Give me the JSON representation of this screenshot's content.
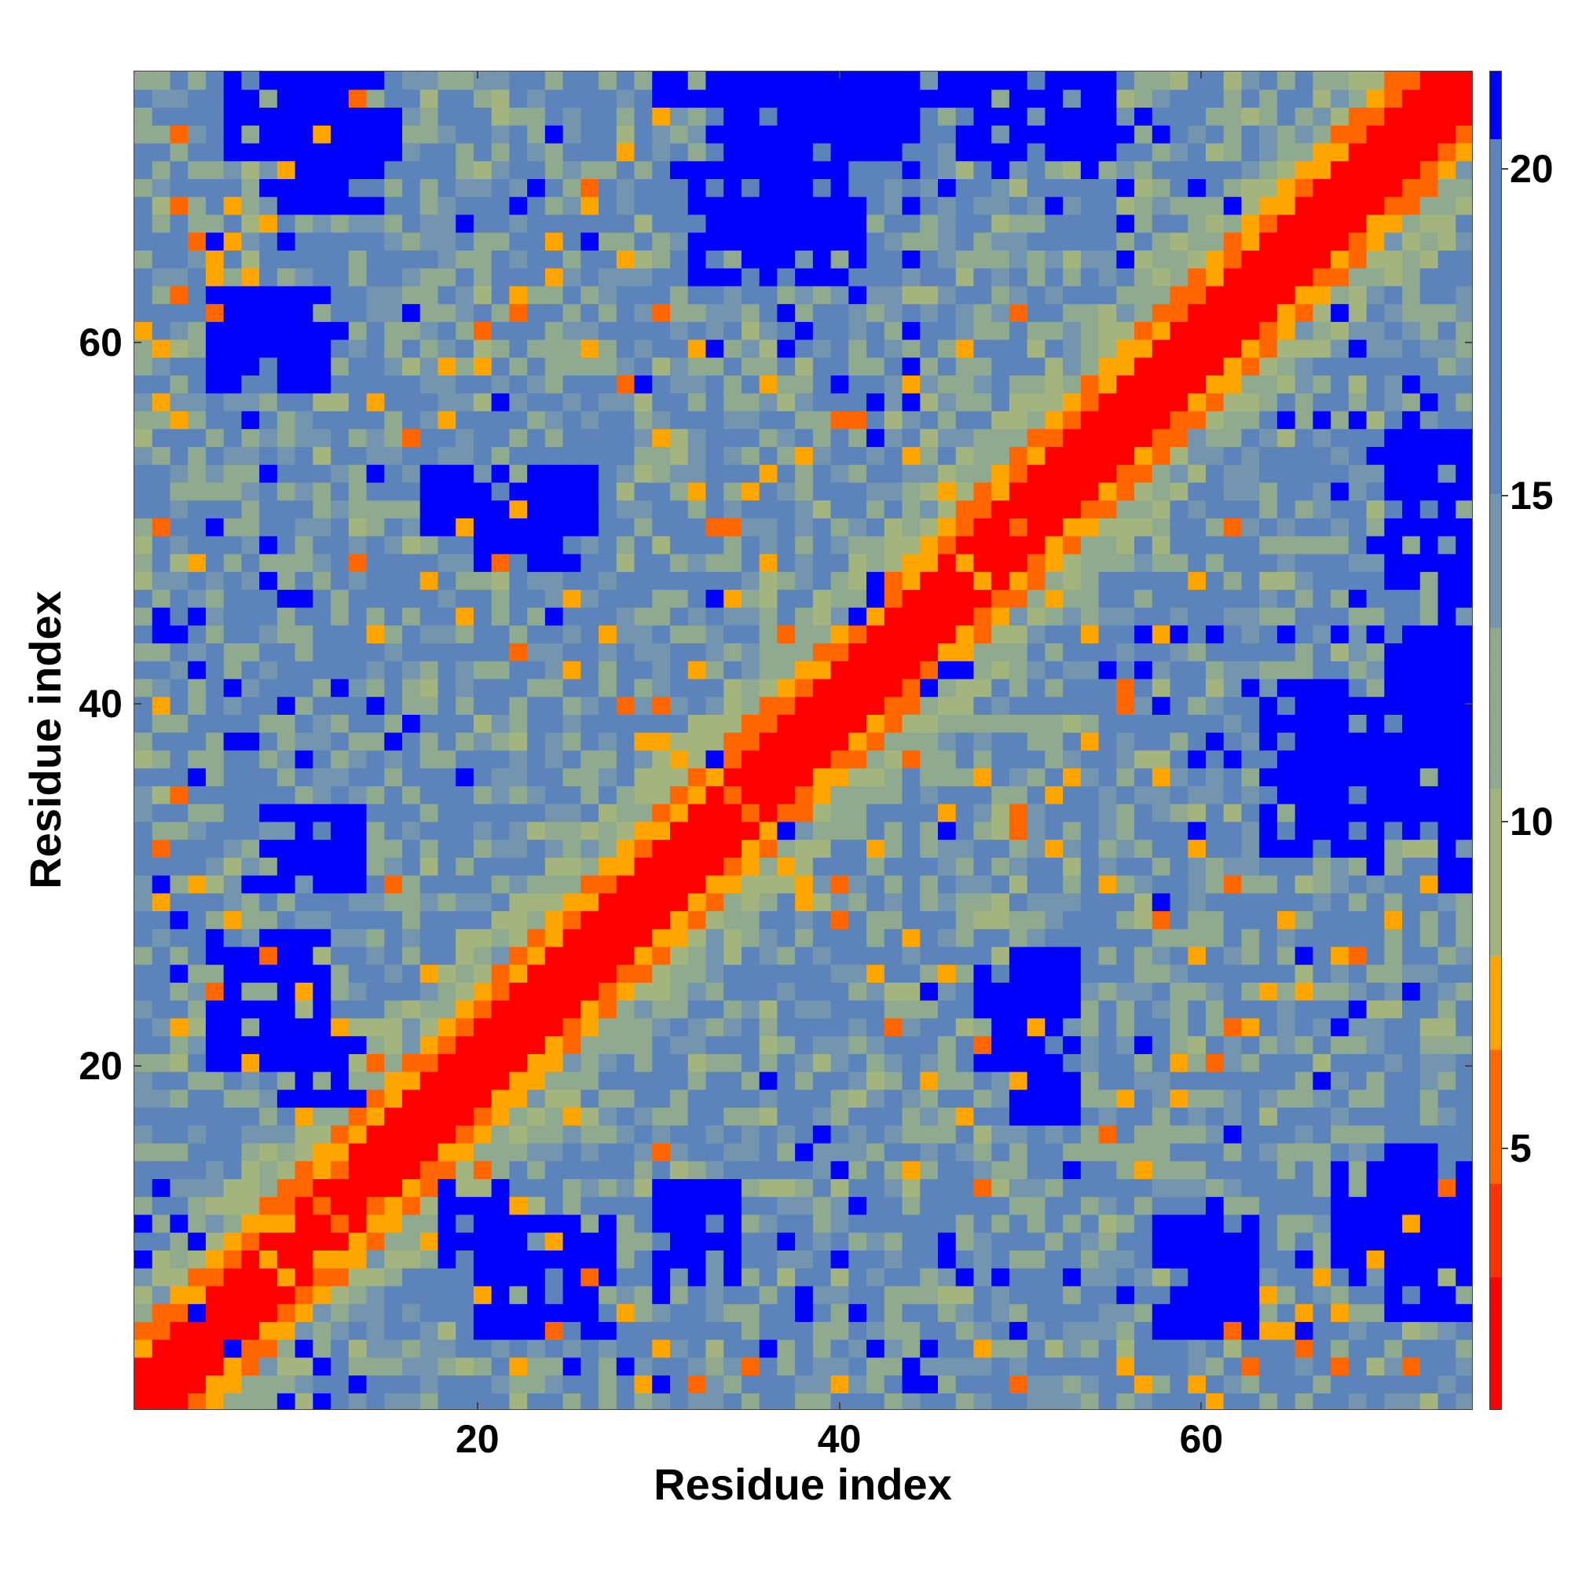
{
  "chart_data": {
    "type": "heatmap",
    "title": "",
    "xlabel": "Residue index",
    "ylabel": "Residue index",
    "n_residues": 75,
    "xlim": [
      1,
      75
    ],
    "ylim": [
      1,
      75
    ],
    "x_ticks": [
      20,
      40,
      60
    ],
    "x_tick_labels": [
      "20",
      "40",
      "60"
    ],
    "y_ticks": [
      20,
      40,
      60
    ],
    "y_tick_labels": [
      "20",
      "40",
      "60"
    ],
    "colorbar": {
      "range": [
        1,
        21.5
      ],
      "ticks": [
        5,
        10,
        15,
        20
      ],
      "tick_labels": [
        "5",
        "10",
        "15",
        "20"
      ],
      "palette": [
        {
          "upto": 3.0,
          "color": "#ff0000"
        },
        {
          "upto": 4.5,
          "color": "#ff3300"
        },
        {
          "upto": 6.5,
          "color": "#ff6600"
        },
        {
          "upto": 8.0,
          "color": "#ffa500"
        },
        {
          "upto": 10.5,
          "color": "#a3b47e"
        },
        {
          "upto": 13.0,
          "color": "#8faa8e"
        },
        {
          "upto": 15.0,
          "color": "#7395b0"
        },
        {
          "upto": 20.5,
          "color": "#5c84bb"
        },
        {
          "upto": 99,
          "color": "#0000ff"
        }
      ]
    },
    "blue_regions": [
      [
        [
          9,
          13
        ],
        [
          18,
          21
        ]
      ],
      [
        [
          8,
          13
        ],
        [
          30,
          34
        ]
      ],
      [
        [
          20,
          27
        ],
        [
          5,
          11
        ]
      ],
      [
        [
          60,
          63
        ],
        [
          5,
          11
        ]
      ],
      [
        [
          71,
          75
        ],
        [
          6,
          15
        ]
      ],
      [
        [
          66,
          70
        ],
        [
          32,
          40
        ]
      ],
      [
        [
          74,
          75
        ],
        [
          30,
          48
        ]
      ],
      [
        [
          5,
          11
        ],
        [
          58,
          62
        ]
      ],
      [
        [
          34,
          44
        ],
        [
          71,
          76
        ]
      ],
      [
        [
          47,
          55
        ],
        [
          71,
          76
        ]
      ],
      [
        [
          32,
          41
        ],
        [
          64,
          68
        ]
      ],
      [
        [
          20,
          25
        ],
        [
          48,
          51
        ]
      ],
      [
        [
          50,
          53
        ],
        [
          17,
          26
        ]
      ],
      [
        [
          73,
          75
        ],
        [
          50,
          55
        ]
      ],
      [
        [
          9,
          14
        ],
        [
          68,
          74
        ]
      ]
    ],
    "blue_points": [
      [
        4,
        6
      ],
      [
        6,
        4
      ],
      [
        11,
        3
      ],
      [
        10,
        4
      ],
      [
        23,
        6
      ],
      [
        25,
        3
      ],
      [
        30,
        7
      ],
      [
        38,
        6
      ],
      [
        41,
        6
      ],
      [
        44,
        2
      ],
      [
        46,
        9
      ],
      [
        48,
        4
      ],
      [
        50,
        5
      ],
      [
        53,
        8
      ],
      [
        56,
        7
      ],
      [
        58,
        10
      ],
      [
        61,
        12
      ],
      [
        63,
        9
      ],
      [
        66,
        9
      ],
      [
        69,
        8
      ],
      [
        4,
        42
      ],
      [
        6,
        41
      ],
      [
        9,
        40
      ],
      [
        12,
        41
      ],
      [
        7,
        38
      ],
      [
        10,
        37
      ],
      [
        15,
        38
      ],
      [
        19,
        36
      ],
      [
        24,
        45
      ],
      [
        33,
        46
      ],
      [
        37,
        33
      ],
      [
        42,
        46
      ],
      [
        45,
        41
      ],
      [
        47,
        42
      ],
      [
        58,
        40
      ],
      [
        60,
        37
      ],
      [
        62,
        37
      ],
      [
        65,
        44
      ],
      [
        68,
        44
      ],
      [
        71,
        43
      ],
      [
        4,
        45
      ],
      [
        3,
        44
      ],
      [
        8,
        47
      ],
      [
        13,
        48
      ],
      [
        21,
        57
      ],
      [
        29,
        58
      ],
      [
        33,
        60
      ],
      [
        38,
        61
      ],
      [
        42,
        57
      ],
      [
        44,
        59
      ],
      [
        55,
        42
      ],
      [
        57,
        44
      ],
      [
        61,
        44
      ],
      [
        63,
        41
      ],
      [
        67,
        56
      ],
      [
        70,
        54
      ],
      [
        72,
        56
      ],
      [
        73,
        57
      ],
      [
        5,
        66
      ],
      [
        8,
        49
      ],
      [
        14,
        70
      ],
      [
        22,
        68
      ],
      [
        26,
        66
      ],
      [
        31,
        70
      ],
      [
        33,
        72
      ],
      [
        39,
        68
      ],
      [
        44,
        70
      ],
      [
        46,
        69
      ],
      [
        49,
        70
      ],
      [
        52,
        68
      ],
      [
        56,
        69
      ],
      [
        58,
        72
      ],
      [
        62,
        68
      ],
      [
        65,
        56
      ],
      [
        69,
        60
      ],
      [
        30,
        2
      ],
      [
        36,
        4
      ],
      [
        40,
        14
      ],
      [
        46,
        10
      ],
      [
        53,
        14
      ],
      [
        62,
        16
      ],
      [
        67,
        19
      ],
      [
        69,
        23
      ],
      [
        72,
        24
      ],
      [
        28,
        3
      ],
      [
        13,
        2
      ],
      [
        9,
        1
      ],
      [
        11,
        1
      ],
      [
        2,
        45
      ],
      [
        16,
        39
      ]
    ],
    "orange_points": [
      [
        3,
        72
      ],
      [
        2,
        60
      ],
      [
        3,
        56
      ],
      [
        4,
        66
      ],
      [
        5,
        64
      ],
      [
        6,
        68
      ],
      [
        2,
        50
      ],
      [
        4,
        48
      ],
      [
        2,
        40
      ],
      [
        3,
        35
      ],
      [
        2,
        29
      ],
      [
        3,
        22
      ],
      [
        5,
        24
      ],
      [
        7,
        20
      ],
      [
        10,
        17
      ],
      [
        12,
        14
      ],
      [
        16,
        13
      ],
      [
        18,
        22
      ],
      [
        15,
        30
      ],
      [
        17,
        25
      ],
      [
        14,
        44
      ],
      [
        13,
        48
      ],
      [
        17,
        47
      ],
      [
        19,
        45
      ],
      [
        22,
        43
      ],
      [
        25,
        42
      ],
      [
        27,
        44
      ],
      [
        28,
        40
      ],
      [
        30,
        38
      ],
      [
        33,
        36
      ],
      [
        35,
        34
      ],
      [
        37,
        31
      ],
      [
        38,
        29
      ],
      [
        40,
        30
      ],
      [
        42,
        32
      ],
      [
        46,
        25
      ],
      [
        48,
        21
      ],
      [
        50,
        19
      ],
      [
        51,
        22
      ],
      [
        55,
        16
      ],
      [
        57,
        14
      ],
      [
        59,
        18
      ],
      [
        61,
        20
      ],
      [
        63,
        22
      ],
      [
        66,
        24
      ],
      [
        69,
        26
      ],
      [
        71,
        28
      ],
      [
        73,
        30
      ],
      [
        62,
        5
      ],
      [
        64,
        7
      ],
      [
        66,
        6
      ],
      [
        68,
        3
      ],
      [
        70,
        9
      ],
      [
        72,
        11
      ],
      [
        74,
        13
      ],
      [
        57,
        2
      ],
      [
        61,
        1
      ],
      [
        63,
        3
      ],
      [
        65,
        5
      ],
      [
        67,
        8
      ],
      [
        44,
        37
      ],
      [
        46,
        34
      ],
      [
        48,
        36
      ],
      [
        50,
        33
      ],
      [
        52,
        35
      ],
      [
        54,
        38
      ],
      [
        56,
        41
      ],
      [
        58,
        44
      ],
      [
        60,
        47
      ],
      [
        62,
        50
      ],
      [
        18,
        56
      ],
      [
        20,
        59
      ],
      [
        22,
        62
      ],
      [
        24,
        64
      ],
      [
        26,
        60
      ],
      [
        28,
        58
      ],
      [
        30,
        55
      ],
      [
        32,
        52
      ],
      [
        34,
        50
      ],
      [
        36,
        53
      ],
      [
        47,
        48
      ],
      [
        50,
        50
      ],
      [
        52,
        46
      ],
      [
        54,
        44
      ],
      [
        56,
        40
      ],
      [
        58,
        36
      ],
      [
        60,
        32
      ],
      [
        62,
        30
      ],
      [
        65,
        28
      ],
      [
        68,
        26
      ],
      [
        20,
        14
      ],
      [
        22,
        12
      ],
      [
        24,
        10
      ],
      [
        26,
        8
      ],
      [
        28,
        6
      ],
      [
        30,
        4
      ],
      [
        32,
        2
      ],
      [
        8,
        9
      ],
      [
        9,
        11
      ],
      [
        11,
        12
      ]
    ]
  },
  "axes": {
    "xlabel": "Residue index",
    "ylabel": "Residue index",
    "x_tick_labels": [
      "20",
      "40",
      "60"
    ],
    "y_tick_labels": [
      "20",
      "40",
      "60"
    ],
    "colorbar_tick_labels": [
      "5",
      "10",
      "15",
      "20"
    ]
  }
}
